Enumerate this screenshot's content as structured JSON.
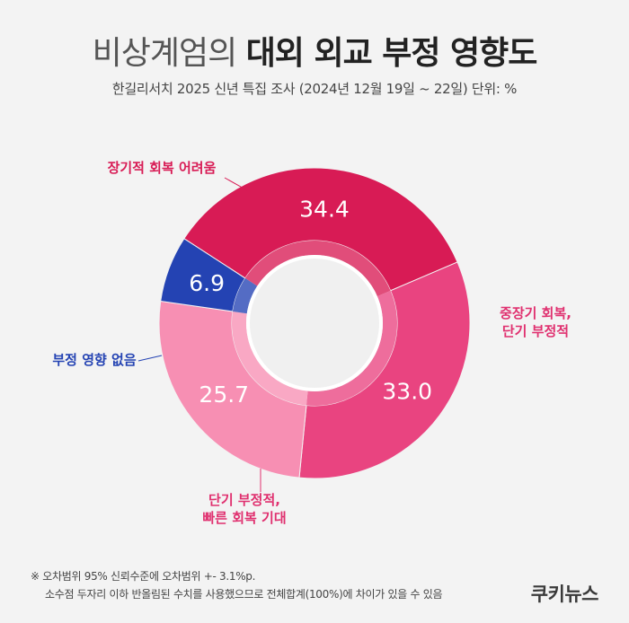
{
  "header": {
    "title_light": "비상계엄의",
    "title_bold": "대외 외교 부정 영향도",
    "subtitle": "한길리서치 2025 신년 특집 조사 (2024년 12월 19일 ~ 22일) 단위: %"
  },
  "chart_data": {
    "type": "pie",
    "donut": true,
    "unit": "%",
    "slices": [
      {
        "label": "장기적 회복 어려움",
        "value": 34.4,
        "value_label": "34.4",
        "color": "#d81b55"
      },
      {
        "label": "중장기 회복, 단기 부정적",
        "value": 33.0,
        "value_label": "33.0",
        "color": "#e94480"
      },
      {
        "label": "단기 부정적, 빠른 회복 기대",
        "value": 25.7,
        "value_label": "25.7",
        "color": "#f78fb3"
      },
      {
        "label": "부정 영향 없음",
        "value": 6.9,
        "value_label": "6.9",
        "color": "#2443b3"
      }
    ],
    "label_colors": [
      "#d81b55",
      "#e0306f",
      "#e0306f",
      "#2443b3"
    ]
  },
  "footer": {
    "note_line1": "※ 오차범위 95% 신뢰수준에 오차범위 +- 3.1%p.",
    "note_line2": "소수점 두자리 이하 반올림된 수치를 사용했으므로 전체합계(100%)에 차이가 있을 수 있음",
    "brand": "쿠키뉴스"
  }
}
